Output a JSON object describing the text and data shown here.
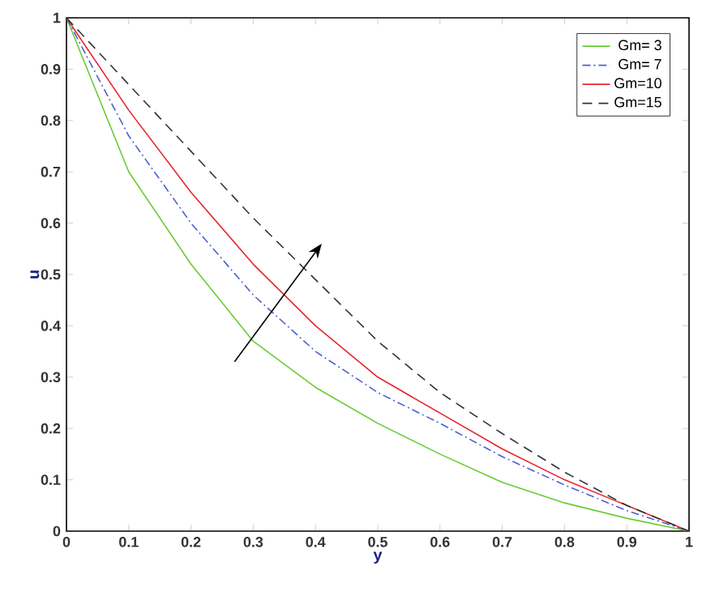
{
  "chart_data": {
    "type": "line",
    "xlabel": "y",
    "ylabel": "u",
    "x": [
      0,
      0.1,
      0.2,
      0.3,
      0.4,
      0.5,
      0.6,
      0.7,
      0.8,
      0.9,
      1
    ],
    "series": [
      {
        "name": "Gm=  3",
        "color": "#66cc33",
        "line_style": "solid",
        "values": [
          1,
          0.7,
          0.52,
          0.37,
          0.28,
          0.21,
          0.15,
          0.095,
          0.055,
          0.025,
          0
        ]
      },
      {
        "name": "Gm=  7",
        "color": "#4a5fd0",
        "line_style": "dashdot",
        "values": [
          1,
          0.77,
          0.6,
          0.46,
          0.35,
          0.27,
          0.21,
          0.145,
          0.09,
          0.04,
          0
        ]
      },
      {
        "name": "Gm=10",
        "color": "#e8242c",
        "line_style": "solid",
        "values": [
          1,
          0.82,
          0.66,
          0.52,
          0.4,
          0.3,
          0.23,
          0.16,
          0.1,
          0.05,
          0
        ]
      },
      {
        "name": "Gm=15",
        "color": "#333333",
        "line_style": "dashed",
        "values": [
          1,
          0.87,
          0.74,
          0.61,
          0.49,
          0.37,
          0.27,
          0.19,
          0.115,
          0.05,
          0
        ]
      }
    ],
    "xlim": [
      0,
      1
    ],
    "ylim": [
      0,
      1
    ],
    "xticks": [
      0,
      0.1,
      0.2,
      0.3,
      0.4,
      0.5,
      0.6,
      0.7,
      0.8,
      0.9,
      1
    ],
    "yticks": [
      0,
      0.1,
      0.2,
      0.3,
      0.4,
      0.5,
      0.6,
      0.7,
      0.8,
      0.9,
      1
    ],
    "grid": false,
    "legend": "top right",
    "marker": "none"
  }
}
